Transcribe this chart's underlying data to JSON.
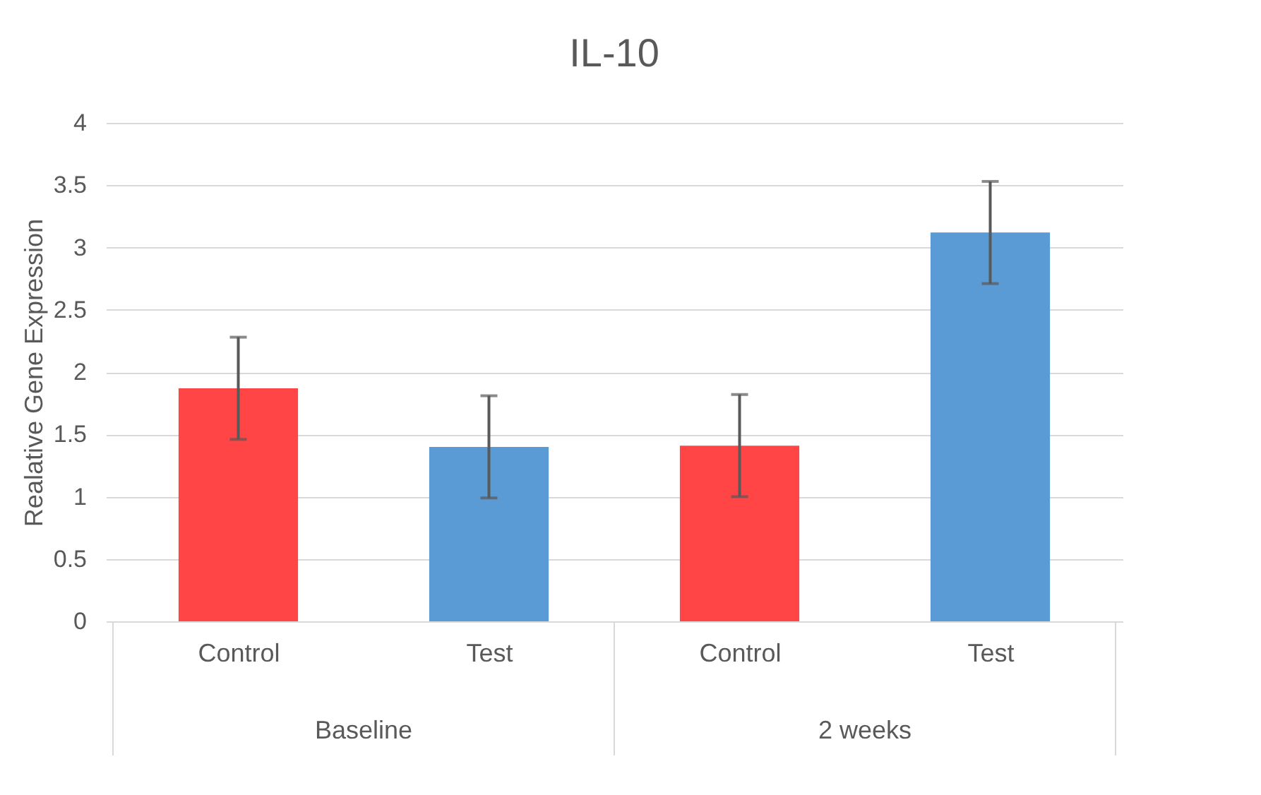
{
  "chart_data": {
    "type": "bar",
    "title": "IL-10",
    "ylabel": "Realative Gene Expression",
    "categories": [
      "Control",
      "Test",
      "Control",
      "Test"
    ],
    "values": [
      1.87,
      1.4,
      1.41,
      3.12
    ],
    "errors": [
      0.41,
      0.41,
      0.41,
      0.41
    ],
    "colors": [
      "#ff4545",
      "#5b9bd5",
      "#ff4545",
      "#5b9bd5"
    ],
    "annotations": [
      "Baseline",
      "2 weeks"
    ],
    "ylim": [
      0,
      4
    ],
    "yticks": [
      0,
      0.5,
      1,
      1.5,
      2,
      2.5,
      3,
      3.5,
      4
    ],
    "grid": "y"
  }
}
